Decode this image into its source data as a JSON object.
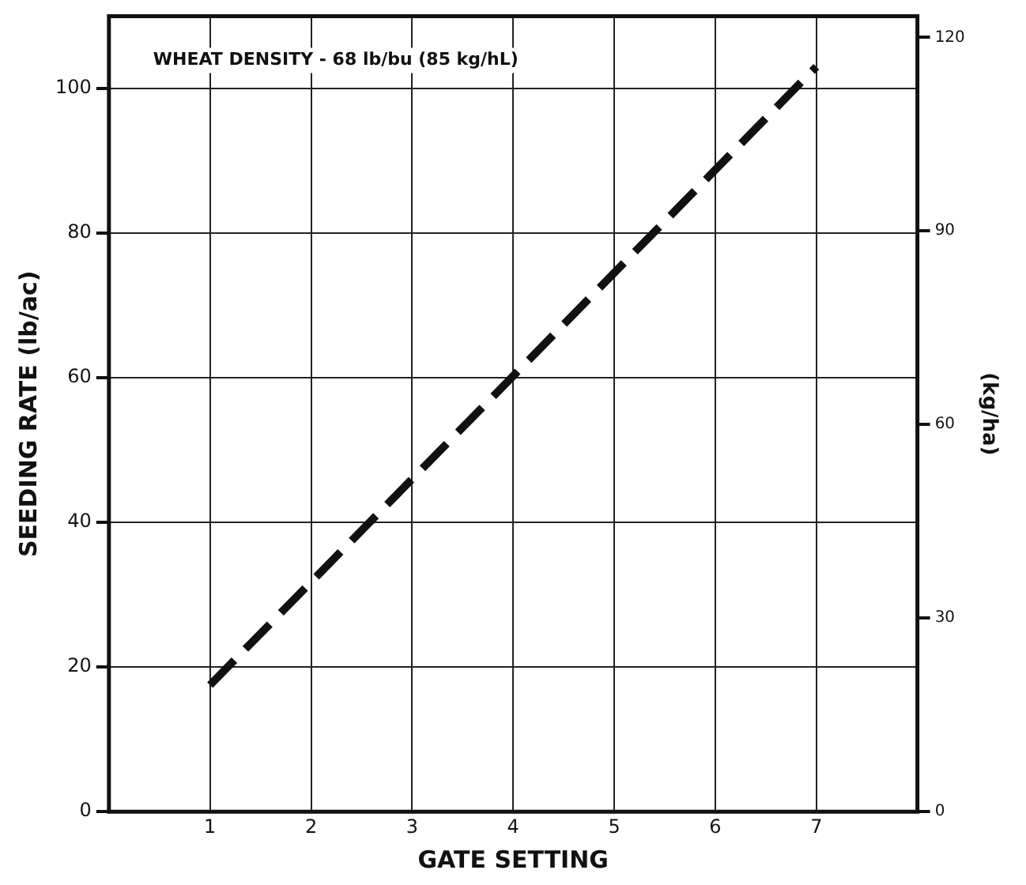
{
  "chart_data": {
    "type": "line",
    "xlabel": "GATE SETTING",
    "ylabel": "SEEDING RATE (lb/ac)",
    "y2label": "(kg/ha)",
    "annotations": [
      "WHEAT DENSITY - 68 lb/bu (85 kg/hL)"
    ],
    "x": [
      1,
      7
    ],
    "series": [
      {
        "color": "#111111",
        "values": [
          17.5,
          103
        ]
      }
    ],
    "xlim": [
      0,
      8
    ],
    "xticks": [
      1,
      2,
      3,
      4,
      5,
      6,
      7
    ],
    "ylim": [
      0,
      110
    ],
    "yticks": [
      0,
      20,
      40,
      60,
      80,
      100
    ],
    "y2lim": [
      0,
      123.3
    ],
    "y2ticks": [
      0,
      30,
      60,
      90,
      120
    ],
    "grid": true,
    "legend": false,
    "marker": "none",
    "line_style": "dashed"
  }
}
